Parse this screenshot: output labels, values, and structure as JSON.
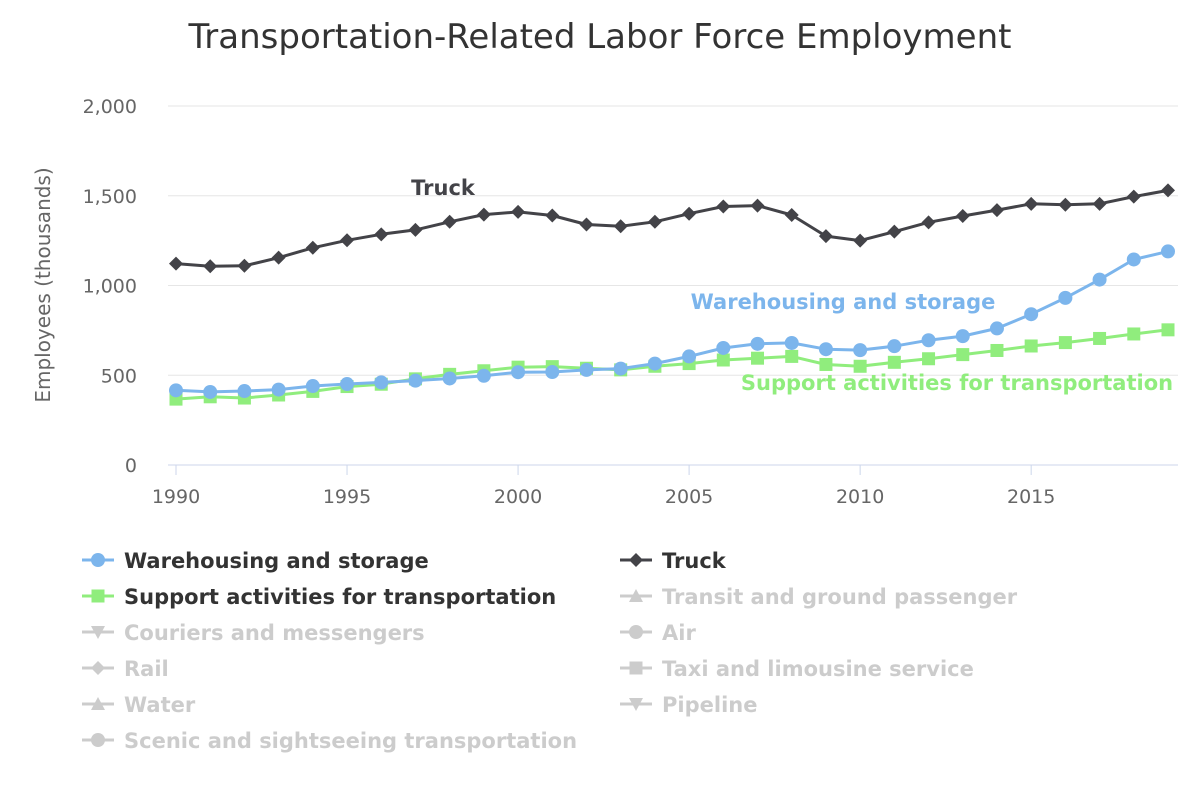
{
  "chart_data": {
    "type": "line",
    "title": "Transportation-Related Labor Force Employment",
    "xlabel": "",
    "ylabel": "Employees (thousands)",
    "xlim": [
      1990,
      2019
    ],
    "ylim": [
      0,
      2000
    ],
    "x_ticks": [
      "1990",
      "1995",
      "2000",
      "2005",
      "2010",
      "2015"
    ],
    "y_ticks": [
      "0",
      "500",
      "1,000",
      "1,500",
      "2,000"
    ],
    "grid": true,
    "legend_position": "bottom",
    "x": [
      1990,
      1991,
      1992,
      1993,
      1994,
      1995,
      1996,
      1997,
      1998,
      1999,
      2000,
      2001,
      2002,
      2003,
      2004,
      2005,
      2006,
      2007,
      2008,
      2009,
      2010,
      2011,
      2012,
      2013,
      2014,
      2015,
      2016,
      2017,
      2018,
      2019
    ],
    "series": [
      {
        "name": "Warehousing and storage",
        "color": "#7cb5ec",
        "marker": "circle",
        "visible": true,
        "values": [
          416,
          407,
          412,
          420,
          440,
          451,
          460,
          470,
          482,
          497,
          517,
          518,
          530,
          537,
          565,
          605,
          652,
          675,
          680,
          645,
          640,
          662,
          695,
          718,
          761,
          840,
          931,
          1033,
          1145,
          1190
        ]
      },
      {
        "name": "Truck",
        "color": "#434348",
        "marker": "diamond",
        "visible": true,
        "values": [
          1122,
          1107,
          1110,
          1155,
          1210,
          1252,
          1285,
          1310,
          1355,
          1395,
          1410,
          1390,
          1340,
          1330,
          1355,
          1400,
          1440,
          1445,
          1393,
          1275,
          1250,
          1300,
          1352,
          1387,
          1420,
          1455,
          1450,
          1455,
          1495,
          1530
        ]
      },
      {
        "name": "Support activities for transportation",
        "color": "#90ed7d",
        "marker": "square",
        "visible": true,
        "values": [
          367,
          380,
          373,
          390,
          410,
          437,
          450,
          480,
          505,
          525,
          545,
          548,
          539,
          530,
          550,
          565,
          585,
          595,
          605,
          560,
          550,
          572,
          592,
          615,
          638,
          663,
          682,
          705,
          730,
          753
        ]
      },
      {
        "name": "Transit and ground passenger",
        "marker": "triangle",
        "visible": false
      },
      {
        "name": "Couriers and messengers",
        "marker": "triangle-down",
        "visible": false
      },
      {
        "name": "Air",
        "marker": "circle",
        "visible": false
      },
      {
        "name": "Rail",
        "marker": "diamond",
        "visible": false
      },
      {
        "name": "Taxi and limousine service",
        "marker": "square",
        "visible": false
      },
      {
        "name": "Water",
        "marker": "triangle",
        "visible": false
      },
      {
        "name": "Pipeline",
        "marker": "triangle-down",
        "visible": false
      },
      {
        "name": "Scenic and sightseeing transportation",
        "marker": "circle",
        "visible": false
      }
    ],
    "annotations": [
      {
        "text": "Truck",
        "series": "Truck"
      },
      {
        "text": "Warehousing and storage",
        "series": "Warehousing and storage"
      },
      {
        "text": "Support activities for transportation",
        "series": "Support activities for transportation"
      }
    ]
  },
  "colors": {
    "hidden": "#cccccc",
    "grid": "#e6e6e6",
    "axis": "#ccd6eb",
    "legend_visible_text": "#333333"
  }
}
